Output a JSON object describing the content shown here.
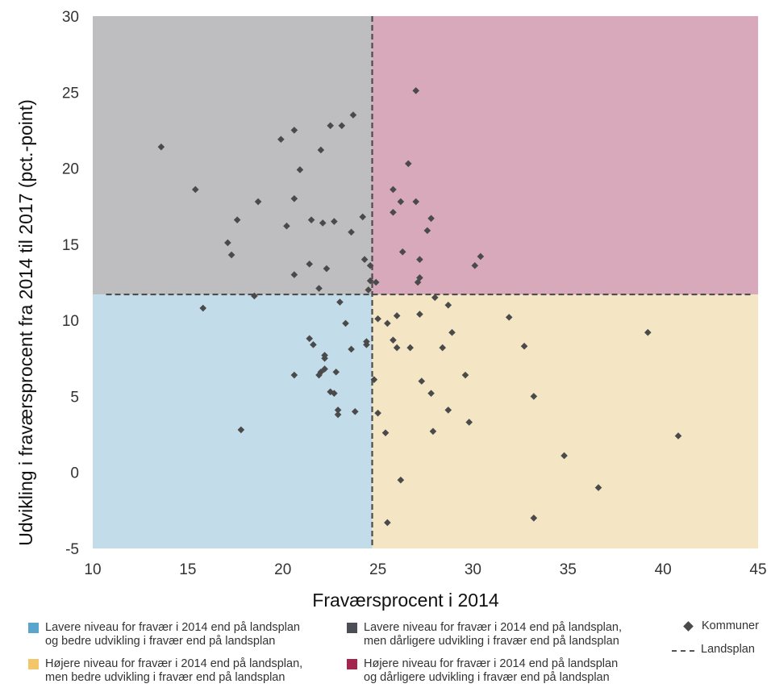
{
  "chart_data": {
    "type": "scatter",
    "xlabel": "Fraværsprocent i 2014",
    "ylabel": "Udvikling i fraværsprocent fra 2014 til 2017 (pct.-point)",
    "xlim": [
      10,
      45
    ],
    "ylim": [
      -5,
      30
    ],
    "x_ticks": [
      "10",
      "15",
      "20",
      "25",
      "30",
      "35",
      "40",
      "45"
    ],
    "y_ticks": [
      "-5",
      "0",
      "5",
      "10",
      "15",
      "20",
      "25",
      "30"
    ],
    "reference_lines": {
      "x": 24.7,
      "y": 11.7
    },
    "quadrants": [
      {
        "name": "lower-left",
        "color": "#c2dcea"
      },
      {
        "name": "upper-left",
        "color": "#bebec0"
      },
      {
        "name": "upper-right",
        "color": "#d8a9bb"
      },
      {
        "name": "lower-right",
        "color": "#f4e5c4"
      }
    ],
    "series": [
      {
        "name": "Kommuner",
        "marker": "diamond",
        "color": "#4a4a4a",
        "points": [
          [
            13.6,
            21.4
          ],
          [
            15.4,
            18.6
          ],
          [
            15.8,
            10.8
          ],
          [
            17.1,
            15.1
          ],
          [
            17.3,
            14.3
          ],
          [
            17.6,
            16.6
          ],
          [
            17.8,
            2.8
          ],
          [
            18.5,
            11.6
          ],
          [
            18.7,
            17.8
          ],
          [
            19.9,
            21.9
          ],
          [
            20.2,
            16.2
          ],
          [
            20.6,
            22.5
          ],
          [
            20.6,
            18.0
          ],
          [
            20.6,
            13.0
          ],
          [
            20.6,
            6.4
          ],
          [
            20.9,
            19.9
          ],
          [
            21.4,
            13.7
          ],
          [
            21.5,
            16.6
          ],
          [
            21.4,
            8.8
          ],
          [
            21.6,
            8.4
          ],
          [
            21.9,
            12.1
          ],
          [
            21.9,
            6.4
          ],
          [
            22.0,
            6.6
          ],
          [
            22.0,
            21.2
          ],
          [
            22.1,
            16.4
          ],
          [
            22.2,
            7.7
          ],
          [
            22.2,
            7.5
          ],
          [
            22.2,
            6.8
          ],
          [
            22.3,
            13.4
          ],
          [
            22.5,
            22.8
          ],
          [
            22.5,
            5.3
          ],
          [
            22.7,
            16.5
          ],
          [
            22.7,
            5.2
          ],
          [
            22.8,
            6.6
          ],
          [
            22.9,
            3.8
          ],
          [
            22.9,
            4.1
          ],
          [
            23.0,
            11.2
          ],
          [
            23.1,
            22.8
          ],
          [
            23.3,
            9.8
          ],
          [
            23.6,
            8.1
          ],
          [
            23.6,
            15.8
          ],
          [
            23.7,
            23.5
          ],
          [
            23.8,
            4.0
          ],
          [
            24.2,
            16.8
          ],
          [
            24.3,
            14.0
          ],
          [
            24.4,
            8.4
          ],
          [
            24.4,
            8.6
          ],
          [
            24.5,
            12.0
          ],
          [
            24.6,
            13.6
          ],
          [
            24.6,
            12.6
          ],
          [
            24.8,
            6.1
          ],
          [
            24.9,
            12.5
          ],
          [
            25.0,
            10.1
          ],
          [
            25.0,
            3.9
          ],
          [
            25.4,
            2.6
          ],
          [
            25.5,
            9.8
          ],
          [
            25.5,
            -3.3
          ],
          [
            25.8,
            8.7
          ],
          [
            25.8,
            18.6
          ],
          [
            25.8,
            17.1
          ],
          [
            26.0,
            10.3
          ],
          [
            26.0,
            8.2
          ],
          [
            26.2,
            17.8
          ],
          [
            26.3,
            14.5
          ],
          [
            26.2,
            -0.5
          ],
          [
            26.6,
            20.3
          ],
          [
            26.7,
            8.2
          ],
          [
            27.0,
            25.1
          ],
          [
            27.0,
            17.8
          ],
          [
            27.1,
            12.5
          ],
          [
            27.2,
            14.0
          ],
          [
            27.2,
            12.8
          ],
          [
            27.2,
            10.4
          ],
          [
            27.3,
            6.0
          ],
          [
            27.6,
            15.9
          ],
          [
            27.8,
            16.7
          ],
          [
            27.8,
            5.2
          ],
          [
            27.9,
            2.7
          ],
          [
            28.0,
            11.5
          ],
          [
            28.4,
            8.2
          ],
          [
            28.7,
            11.0
          ],
          [
            28.7,
            4.1
          ],
          [
            28.9,
            9.2
          ],
          [
            29.6,
            6.4
          ],
          [
            29.8,
            3.3
          ],
          [
            30.1,
            13.6
          ],
          [
            30.4,
            14.2
          ],
          [
            31.9,
            10.2
          ],
          [
            32.7,
            8.3
          ],
          [
            33.2,
            5.0
          ],
          [
            33.2,
            -3.0
          ],
          [
            34.8,
            1.1
          ],
          [
            36.6,
            -1.0
          ],
          [
            39.2,
            9.2
          ],
          [
            40.8,
            2.4
          ]
        ]
      }
    ],
    "legend": {
      "placement": "bottom",
      "quadrant_items": [
        {
          "color": "#5ba4cc",
          "line1": "Lavere niveau for fravær i 2014 end på landsplan",
          "line2": "og bedre udvikling i fravær end på landsplan"
        },
        {
          "color": "#4b4f55",
          "line1": "Lavere niveau for fravær i 2014 end på landsplan,",
          "line2": "men dårligere udvikling i fravær end på landsplan"
        },
        {
          "color": "#f2c76b",
          "line1": "Højere niveau for fravær i 2014 end på landsplan,",
          "line2": "men bedre udvikling i fravær end på landsplan"
        },
        {
          "color": "#a3264f",
          "line1": "Højere niveau for fravær i 2014 end på landsplan",
          "line2": "og dårligere udvikling i fravær end på landsplan"
        }
      ],
      "marker_label": "Kommuner",
      "line_label": "Landsplan"
    }
  }
}
